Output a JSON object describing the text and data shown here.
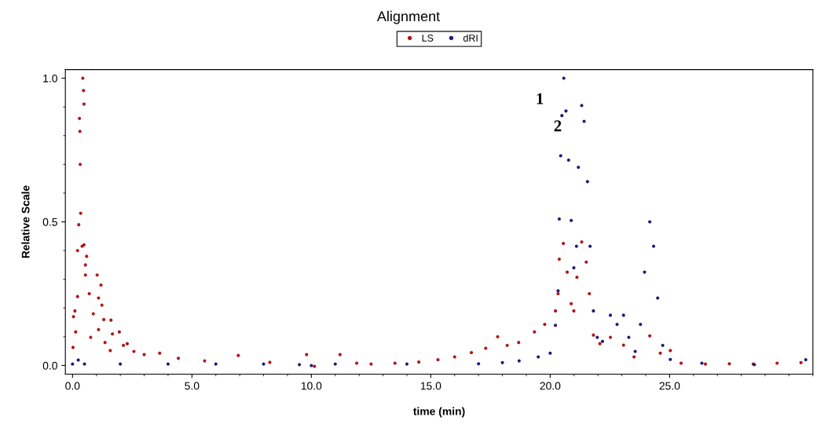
{
  "chart_data": {
    "type": "scatter",
    "title": "Alignment",
    "xlabel": "time (min)",
    "ylabel": "Relative Scale",
    "legend": "top",
    "grid": false,
    "marker": "circle",
    "xlim": [
      -0.3,
      31.0
    ],
    "ylim": [
      -0.03,
      1.03
    ],
    "xticks": [
      {
        "value": 0,
        "label": "0.0"
      },
      {
        "value": 5,
        "label": "5.0"
      },
      {
        "value": 10,
        "label": "10.0"
      },
      {
        "value": 15,
        "label": "15.0"
      },
      {
        "value": 20,
        "label": "20.0"
      },
      {
        "value": 25,
        "label": "25.0"
      }
    ],
    "yticks": [
      {
        "value": 0,
        "label": "0.0"
      },
      {
        "value": 0.5,
        "label": "0.5"
      },
      {
        "value": 1,
        "label": "1.0"
      }
    ],
    "series": [
      {
        "name": "LS",
        "color": "#b01818",
        "x": [
          0.02,
          0.04,
          0.1,
          0.13,
          0.21,
          0.21,
          0.26,
          0.29,
          0.31,
          0.32,
          0.34,
          0.4,
          0.43,
          0.46,
          0.48,
          0.48,
          0.54,
          0.54,
          0.59,
          0.7,
          0.76,
          0.87,
          1.03,
          1.09,
          1.09,
          1.19,
          1.23,
          1.31,
          1.36,
          1.58,
          1.61,
          1.67,
          1.96,
          2.13,
          2.29,
          2.57,
          3.0,
          3.65,
          4.43,
          5.53,
          6.94,
          8.26,
          9.8,
          10.13,
          11.2,
          11.9,
          12.5,
          13.5,
          14.5,
          15.3,
          16.0,
          16.7,
          17.3,
          17.8,
          18.2,
          18.68,
          19.34,
          19.77,
          20.22,
          20.33,
          20.38,
          20.55,
          20.71,
          20.88,
          20.99,
          21.12,
          21.32,
          21.51,
          21.64,
          21.81,
          22.08,
          22.52,
          23.07,
          23.51,
          24.17,
          24.61,
          25.03,
          25.48,
          26.5,
          27.5,
          28.5,
          29.5,
          30.5
        ],
        "values": [
          0.063,
          0.17,
          0.19,
          0.117,
          0.24,
          0.4,
          0.49,
          0.86,
          0.815,
          0.7,
          0.53,
          0.415,
          1.0,
          0.957,
          0.91,
          0.42,
          0.35,
          0.315,
          0.38,
          0.25,
          0.098,
          0.18,
          0.315,
          0.235,
          0.125,
          0.28,
          0.21,
          0.16,
          0.08,
          0.052,
          0.158,
          0.11,
          0.117,
          0.07,
          0.076,
          0.049,
          0.038,
          0.043,
          0.025,
          0.016,
          0.035,
          0.011,
          0.038,
          -0.003,
          0.038,
          0.008,
          0.005,
          0.008,
          0.012,
          0.02,
          0.03,
          0.045,
          0.06,
          0.1,
          0.07,
          0.08,
          0.117,
          0.143,
          0.19,
          0.25,
          0.37,
          0.425,
          0.325,
          0.215,
          0.19,
          0.307,
          0.43,
          0.36,
          0.25,
          0.106,
          0.076,
          0.098,
          0.071,
          0.03,
          0.103,
          0.043,
          0.052,
          0.008,
          0.005,
          0.006,
          0.005,
          0.008,
          0.01
        ]
      },
      {
        "name": "dRI",
        "color": "#1c1c78",
        "x": [
          0.0,
          0.24,
          0.5,
          2,
          4,
          6,
          8,
          9.5,
          10.0,
          11,
          14,
          17,
          18,
          18.7,
          19.5,
          20.0,
          20.22,
          20.33,
          20.38,
          20.44,
          20.49,
          20.57,
          20.66,
          20.77,
          20.88,
          20.99,
          21.1,
          21.18,
          21.32,
          21.42,
          21.56,
          21.67,
          21.81,
          21.97,
          22.19,
          22.52,
          22.8,
          23.07,
          23.29,
          23.56,
          23.78,
          23.95,
          24.17,
          24.33,
          24.5,
          24.71,
          25.03,
          26.35,
          28.55,
          30.7
        ],
        "values": [
          0.005,
          0.019,
          0.005,
          0.005,
          0.005,
          0.005,
          0.005,
          0.003,
          0.0,
          0.005,
          0.005,
          0.006,
          0.01,
          0.016,
          0.03,
          0.043,
          0.14,
          0.26,
          0.51,
          0.73,
          0.87,
          1.0,
          0.886,
          0.715,
          0.505,
          0.34,
          0.415,
          0.69,
          0.905,
          0.85,
          0.64,
          0.415,
          0.19,
          0.098,
          0.084,
          0.175,
          0.143,
          0.175,
          0.098,
          0.049,
          0.143,
          0.325,
          0.5,
          0.415,
          0.235,
          0.07,
          0.021,
          0.008,
          0.003,
          0.02
        ]
      }
    ],
    "annotations": [
      {
        "text": "1",
        "x": 20.57,
        "y": 1.0
      },
      {
        "text": "2",
        "x": 21.32,
        "y": 0.905
      }
    ]
  }
}
